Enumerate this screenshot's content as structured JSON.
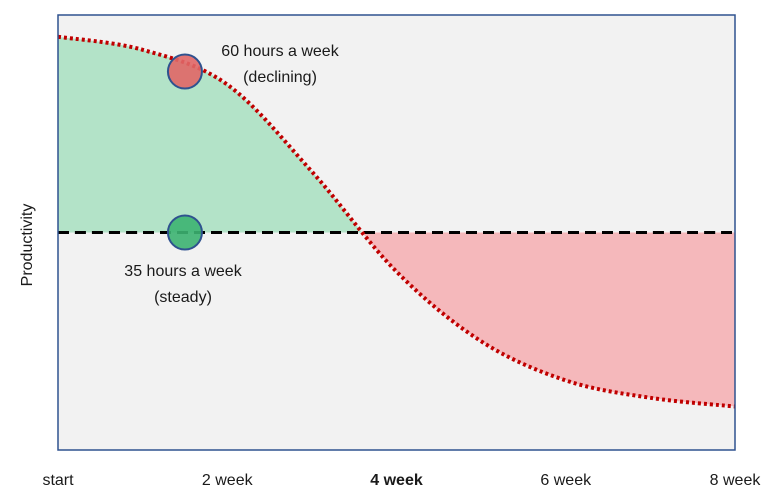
{
  "chart_data": {
    "type": "line",
    "y_label": "Productivity",
    "x": [
      0,
      1,
      2,
      3,
      4,
      5,
      6,
      7,
      8
    ],
    "xlim": [
      0,
      8
    ],
    "xticks": [
      {
        "value": 0,
        "label": "start"
      },
      {
        "value": 2,
        "label": "2 week"
      },
      {
        "value": 4,
        "label": "4 week"
      },
      {
        "value": 6,
        "label": "6 week"
      },
      {
        "value": 8,
        "label": "8 week"
      }
    ],
    "ylim": [
      0,
      100
    ],
    "series": [
      {
        "color": "#c00000",
        "style": "dotted",
        "values": [
          95,
          92,
          84,
          64,
          41,
          25,
          16,
          12,
          10
        ]
      },
      {
        "color": "#000000",
        "style": "dashed",
        "values": [
          50,
          50,
          50,
          50,
          50,
          50,
          50,
          50,
          50
        ]
      }
    ],
    "fill_above_color": "#b3e3c8",
    "fill_below_color": "#f5b8bb",
    "points": [
      {
        "x": 1.5,
        "y": 87,
        "color": "#e06666"
      },
      {
        "x": 1.5,
        "y": 50,
        "color": "#3cb371"
      }
    ],
    "annotations": [
      {
        "lines": [
          "60 hours a week",
          "(declining)"
        ]
      },
      {
        "lines": [
          "35 hours a week",
          "(steady)"
        ]
      }
    ]
  }
}
